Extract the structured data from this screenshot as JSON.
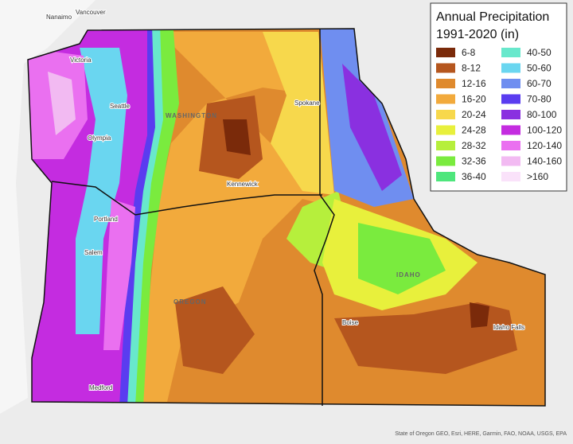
{
  "legend": {
    "title": [
      "Annual Precipitation",
      "1991-2020 (in)"
    ],
    "items": [
      {
        "label": "6-8",
        "color": "#7a2a0a"
      },
      {
        "label": "8-12",
        "color": "#b5561e"
      },
      {
        "label": "12-16",
        "color": "#df8a2e"
      },
      {
        "label": "16-20",
        "color": "#f2aa3c"
      },
      {
        "label": "20-24",
        "color": "#f7d84c"
      },
      {
        "label": "24-28",
        "color": "#e8f03c"
      },
      {
        "label": "28-32",
        "color": "#b6ef3c"
      },
      {
        "label": "32-36",
        "color": "#7aeb3e"
      },
      {
        "label": "36-40",
        "color": "#4ee67c"
      },
      {
        "label": "40-50",
        "color": "#68e8cc"
      },
      {
        "label": "50-60",
        "color": "#6ad6f0"
      },
      {
        "label": "60-70",
        "color": "#6f8ef0"
      },
      {
        "label": "70-80",
        "color": "#5a3cf0"
      },
      {
        "label": "80-100",
        "color": "#8a30e0"
      },
      {
        "label": "100-120",
        "color": "#c42ce0"
      },
      {
        "label": "120-140",
        "color": "#ea70f0"
      },
      {
        "label": "140-160",
        "color": "#f2baf2"
      },
      {
        "label": ">160",
        "color": "#fae2fa"
      }
    ]
  },
  "places": {
    "vancouver": "Vancouver",
    "nanaimo": "Nanaimo",
    "victoria": "Victoria",
    "seattle": "Seattle",
    "olympia": "Olympia",
    "spokane": "Spokane",
    "kennewick": "Kennewick",
    "portland": "Portland",
    "salem": "Salem",
    "medford": "Medford",
    "boise": "Boise",
    "idaho_falls": "Idaho Falls"
  },
  "states": {
    "washington": "WASHINGTON",
    "oregon": "OREGON",
    "idaho": "IDAHO"
  },
  "attribution": "State of Oregon GEO, Esri, HERE, Garmin, FAO, NOAA, USGS, EPA"
}
